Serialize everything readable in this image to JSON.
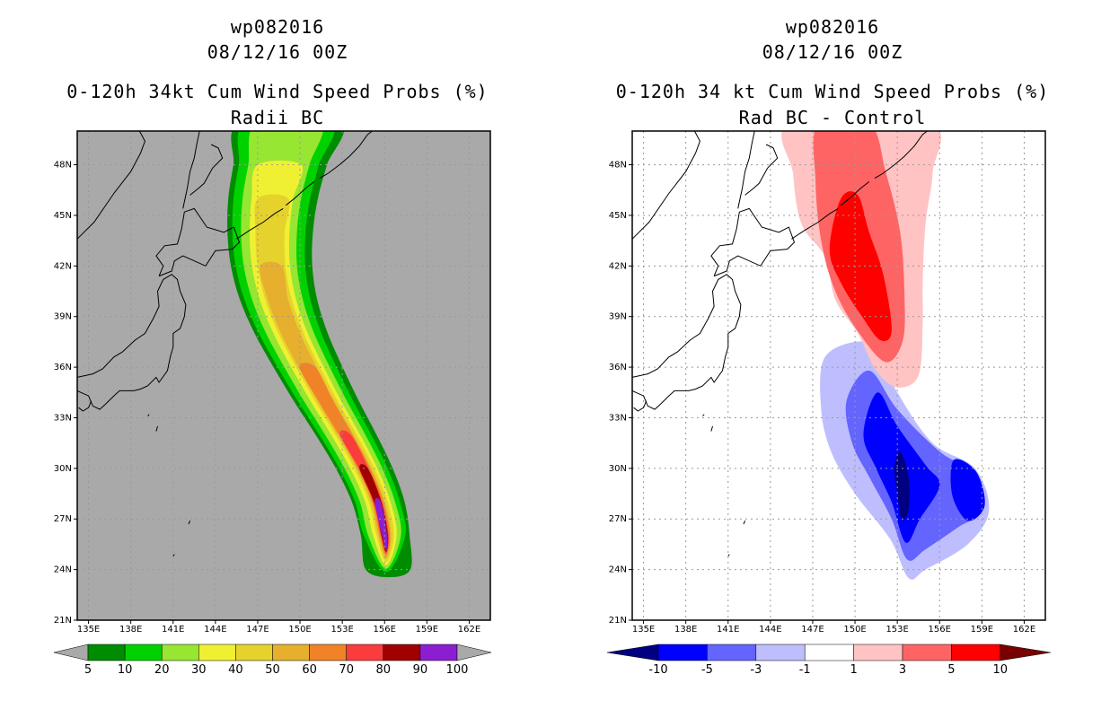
{
  "colors": {
    "ocean_left": "#a9a9a9",
    "coast": "#000000"
  },
  "chart_data": [
    {
      "type": "heatmap",
      "title_line1": "wp082016",
      "title_line2": "08/12/16 00Z",
      "title_line3": "0-120h 34kt Cum Wind Speed Probs (%)",
      "title_line4": "Radii BC",
      "xlim": [
        134.2,
        163.5
      ],
      "ylim": [
        21,
        50
      ],
      "xticks": [
        "135E",
        "138E",
        "141E",
        "144E",
        "147E",
        "150E",
        "153E",
        "156E",
        "159E",
        "162E"
      ],
      "yticks": [
        "21N",
        "24N",
        "27N",
        "30N",
        "33N",
        "36N",
        "39N",
        "42N",
        "45N",
        "48N"
      ],
      "colorbar": {
        "labels": [
          "5",
          "10",
          "20",
          "30",
          "40",
          "50",
          "60",
          "70",
          "80",
          "90",
          "100"
        ],
        "colors": [
          "#008c00",
          "#00d200",
          "#96e632",
          "#f0f032",
          "#e6d22d",
          "#e6af2d",
          "#f08228",
          "#fa3c3c",
          "#a00000",
          "#8c1ed2"
        ]
      },
      "legend_position": "bottom"
    },
    {
      "type": "heatmap",
      "title_line1": "wp082016",
      "title_line2": "08/12/16 00Z",
      "title_line3": "0-120h 34 kt Cum Wind Speed Probs (%)",
      "title_line4": "Rad BC - Control",
      "xlim": [
        134.2,
        163.5
      ],
      "ylim": [
        21,
        50
      ],
      "xticks": [
        "135E",
        "138E",
        "141E",
        "144E",
        "147E",
        "150E",
        "153E",
        "156E",
        "159E",
        "162E"
      ],
      "yticks": [
        "21N",
        "24N",
        "27N",
        "30N",
        "33N",
        "36N",
        "39N",
        "42N",
        "45N",
        "48N"
      ],
      "colorbar": {
        "labels": [
          "-10",
          "-5",
          "-3",
          "-1",
          "1",
          "3",
          "5",
          "10"
        ],
        "colors": [
          "#000080",
          "#0000ff",
          "#6464ff",
          "#bebeff",
          "#ffffff",
          "#ffc3c3",
          "#ff6464",
          "#ff0000",
          "#780000"
        ]
      },
      "legend_position": "bottom"
    }
  ]
}
